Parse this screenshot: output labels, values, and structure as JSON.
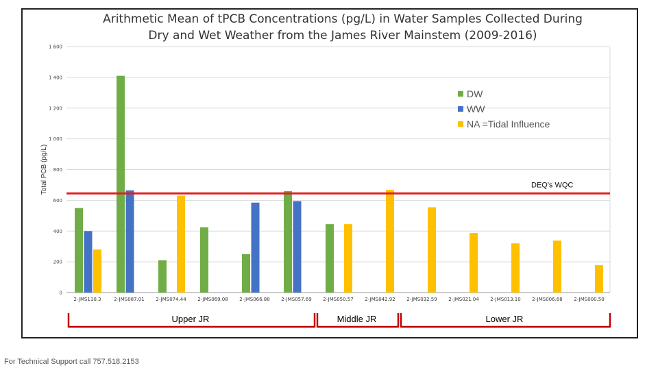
{
  "chart_data": {
    "type": "bar",
    "title": "Arithmetic Mean of tPCB Concentrations (pg/L) in Water Samples Collected During Dry and Wet Weather from the James River Mainstem (2009-2016)",
    "xlabel": "",
    "ylabel": "Total PCB (pg/L)",
    "ylim": [
      0,
      1600
    ],
    "y_ticks": [
      0,
      200,
      400,
      600,
      800,
      1000,
      1200,
      1400,
      1600
    ],
    "y_tick_labels": [
      "0",
      "200",
      "400",
      "600",
      "800",
      "1 000",
      "1 200",
      "1 400",
      "1 600"
    ],
    "grid": true,
    "legend_position": "right",
    "categories": [
      "2-JMS110.3",
      "2-JMS087.01",
      "2-JMS074.44",
      "2-JMS069.08",
      "2-JMS066.88",
      "2-JMS057.69",
      "2-JMS050.57",
      "2-JMS042.92",
      "2-JMS032.59",
      "2-JMS021.04",
      "2-JMS013.10",
      "2-JMS006.68",
      "2-JMS000.50"
    ],
    "series": [
      {
        "name": "DW",
        "color": "#70ad47",
        "values": [
          550,
          1410,
          210,
          425,
          250,
          660,
          445,
          null,
          null,
          null,
          null,
          null,
          null
        ]
      },
      {
        "name": "WW",
        "color": "#4472c4",
        "values": [
          400,
          665,
          null,
          null,
          585,
          595,
          null,
          null,
          null,
          null,
          null,
          null,
          null
        ]
      },
      {
        "name": "NA =Tidal Influence",
        "color": "#ffc000",
        "values": [
          280,
          null,
          630,
          null,
          null,
          null,
          445,
          668,
          555,
          388,
          320,
          338,
          178
        ]
      }
    ],
    "reference_line": {
      "label": "DEQ's WQC",
      "value": 645,
      "color": "#e02020"
    },
    "regions": [
      {
        "label": "Upper JR",
        "from": 0,
        "to": 5
      },
      {
        "label": "Middle JR",
        "from": 6,
        "to": 7
      },
      {
        "label": "Lower JR",
        "from": 8,
        "to": 12
      }
    ]
  },
  "footer": "For Technical Support call 757.518.2153"
}
